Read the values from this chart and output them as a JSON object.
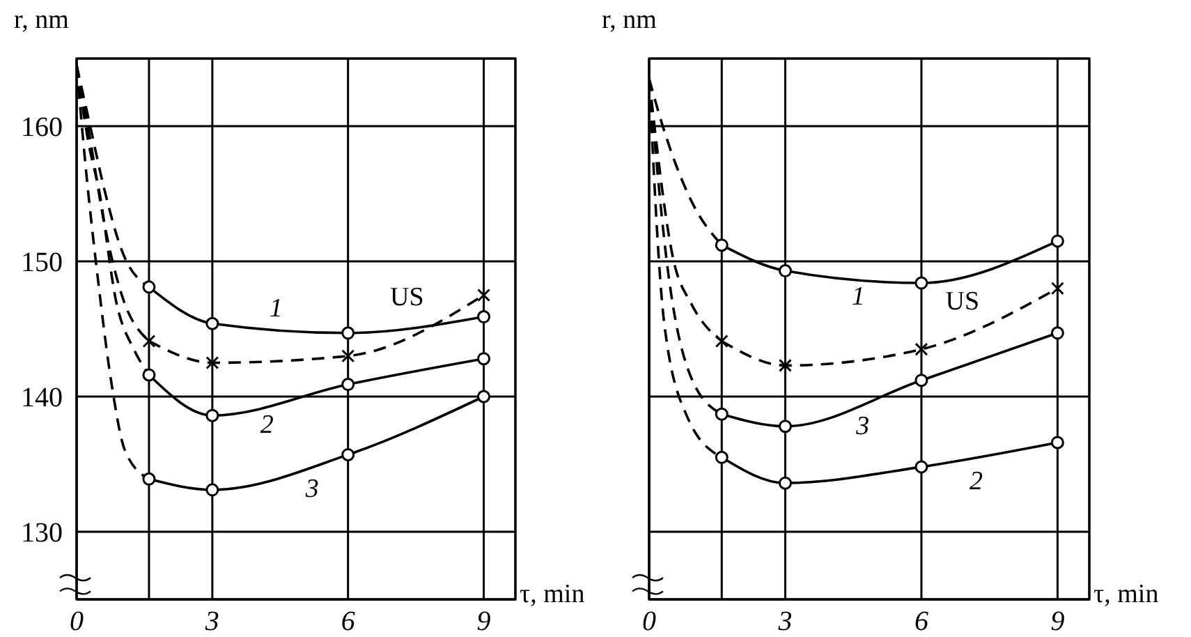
{
  "chart_data": [
    {
      "type": "line",
      "ylabel": "r, nm",
      "xlabel": "τ, min",
      "xlim": [
        0,
        9.7
      ],
      "ylim": [
        125,
        165
      ],
      "xticks": [
        0,
        {
          "value": 1.6,
          "label": null
        },
        3,
        6,
        9
      ],
      "yticks": [
        130,
        140,
        150,
        160
      ],
      "grid": true,
      "legend": false,
      "series": [
        {
          "color": "#000000",
          "line_style": "dashed",
          "marker": "none",
          "x": [
            0,
            0.3,
            0.6,
            1.0,
            1.6
          ],
          "values": [
            164.5,
            160,
            155.5,
            150.8,
            148.1
          ]
        },
        {
          "name": "1",
          "color": "#000000",
          "line_style": "solid",
          "marker": "circle",
          "x": [
            1.6,
            3,
            6,
            9
          ],
          "values": [
            148.1,
            145.4,
            144.7,
            145.9
          ]
        },
        {
          "color": "#000000",
          "line_style": "dashed",
          "marker": "none",
          "x": [
            0,
            0.3,
            0.6,
            1.0,
            1.6
          ],
          "values": [
            164.5,
            159,
            153,
            147.5,
            144.1
          ]
        },
        {
          "name": "US",
          "color": "#000000",
          "line_style": "dashed",
          "marker": "cross",
          "x": [
            1.6,
            3,
            6,
            9
          ],
          "values": [
            144.1,
            142.5,
            143.0,
            147.5
          ]
        },
        {
          "color": "#000000",
          "line_style": "dashed",
          "marker": "none",
          "x": [
            0,
            0.25,
            0.51,
            0.87,
            1.28,
            1.6
          ],
          "values": [
            164.5,
            159,
            155,
            147.1,
            143.4,
            141.6
          ]
        },
        {
          "name": "2",
          "color": "#000000",
          "line_style": "solid",
          "marker": "circle",
          "x": [
            1.6,
            3,
            6,
            9
          ],
          "values": [
            141.6,
            138.6,
            140.9,
            142.8
          ]
        },
        {
          "color": "#000000",
          "line_style": "dashed",
          "marker": "none",
          "x": [
            0,
            0.2,
            0.46,
            0.77,
            1.07,
            1.6
          ],
          "values": [
            164.5,
            157,
            149,
            141,
            136,
            133.9
          ]
        },
        {
          "name": "3",
          "color": "#000000",
          "line_style": "solid",
          "marker": "circle",
          "x": [
            1.6,
            3,
            6,
            9
          ],
          "values": [
            133.9,
            133.1,
            135.7,
            140.0
          ]
        }
      ]
    },
    {
      "type": "line",
      "ylabel": "r, nm",
      "xlabel": "τ, min",
      "xlim": [
        0,
        9.7
      ],
      "ylim": [
        125,
        165
      ],
      "xticks": [
        0,
        {
          "value": 1.6,
          "label": null
        },
        3,
        6,
        9
      ],
      "yticks": [
        130,
        140,
        150,
        160
      ],
      "grid": true,
      "legend": false,
      "tick_labels": "x",
      "series": [
        {
          "color": "#000000",
          "line_style": "dashed",
          "marker": "none",
          "x": [
            0,
            0.3,
            0.94,
            1.6
          ],
          "values": [
            163.5,
            160,
            154.4,
            151.2
          ]
        },
        {
          "name": "1",
          "color": "#000000",
          "line_style": "solid",
          "marker": "circle",
          "x": [
            1.6,
            3,
            6,
            9
          ],
          "values": [
            151.2,
            149.3,
            148.4,
            151.5
          ]
        },
        {
          "color": "#000000",
          "line_style": "dashed",
          "marker": "none",
          "x": [
            0,
            0.53,
            0.94,
            1.6
          ],
          "values": [
            163.5,
            150.2,
            146.8,
            144.1
          ]
        },
        {
          "name": "US",
          "color": "#000000",
          "line_style": "dashed",
          "marker": "cross",
          "x": [
            1.6,
            3,
            6,
            9
          ],
          "values": [
            144.1,
            142.3,
            143.5,
            148.0
          ]
        },
        {
          "color": "#000000",
          "line_style": "dashed",
          "marker": "none",
          "x": [
            0,
            0.43,
            0.94,
            1.6
          ],
          "values": [
            163.5,
            148.9,
            141.3,
            138.7
          ]
        },
        {
          "name": "3",
          "color": "#000000",
          "line_style": "solid",
          "marker": "circle",
          "x": [
            1.6,
            3,
            6,
            9
          ],
          "values": [
            138.7,
            137.8,
            141.2,
            144.7
          ]
        },
        {
          "color": "#000000",
          "line_style": "dashed",
          "marker": "none",
          "x": [
            0,
            0.33,
            0.84,
            1.6
          ],
          "values": [
            163.5,
            145.5,
            138.5,
            135.5
          ]
        },
        {
          "name": "2",
          "color": "#000000",
          "line_style": "solid",
          "marker": "circle",
          "x": [
            1.6,
            3,
            6,
            9
          ],
          "values": [
            135.5,
            133.6,
            134.8,
            136.6
          ]
        }
      ]
    }
  ]
}
